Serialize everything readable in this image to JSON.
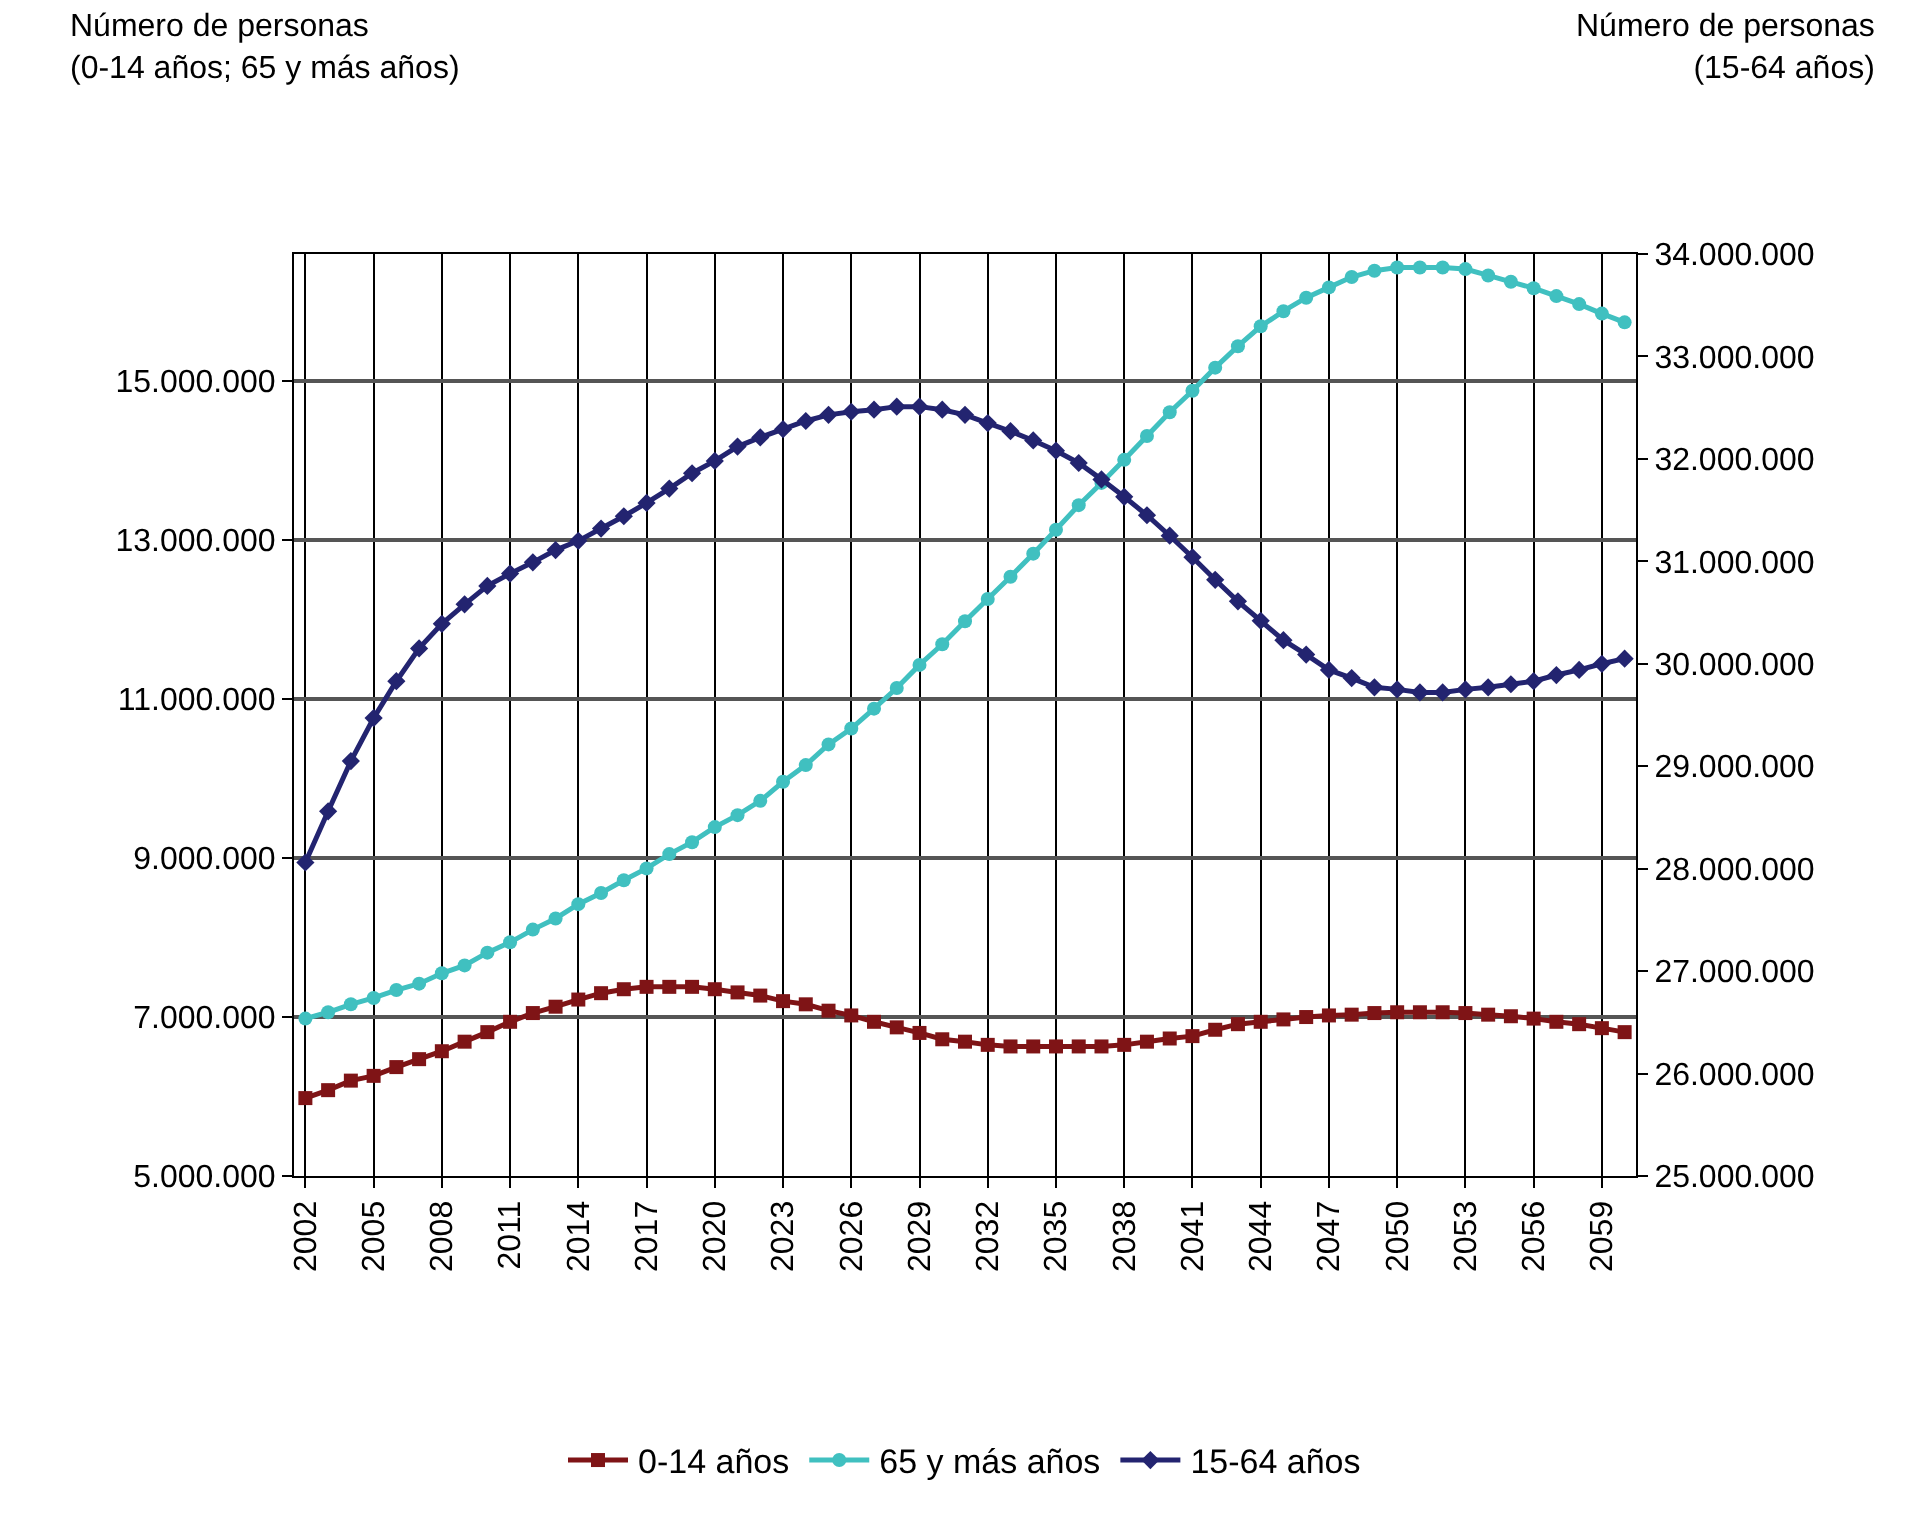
{
  "chart_data": {
    "type": "line",
    "ylabel": "Número de personas\n(0-14 años; 65 y más años)",
    "y2label": "Número de personas\n(15-64 años)",
    "x": [
      2002,
      2003,
      2004,
      2005,
      2006,
      2007,
      2008,
      2009,
      2010,
      2011,
      2012,
      2013,
      2014,
      2015,
      2016,
      2017,
      2018,
      2019,
      2020,
      2021,
      2022,
      2023,
      2024,
      2025,
      2026,
      2027,
      2028,
      2029,
      2030,
      2031,
      2032,
      2033,
      2034,
      2035,
      2036,
      2037,
      2038,
      2039,
      2040,
      2041,
      2042,
      2043,
      2044,
      2045,
      2046,
      2047,
      2048,
      2049,
      2050,
      2051,
      2052,
      2053,
      2054,
      2055,
      2056,
      2057,
      2058,
      2059,
      2060
    ],
    "xlim": [
      2001.5,
      2060.5
    ],
    "xticks": [
      2002,
      2005,
      2008,
      2011,
      2014,
      2017,
      2020,
      2023,
      2026,
      2029,
      2032,
      2035,
      2038,
      2041,
      2044,
      2047,
      2050,
      2053,
      2056,
      2059
    ],
    "ylim": [
      5000000,
      16600000
    ],
    "yticks": [
      {
        "value": 5000000,
        "label": "5.000.000"
      },
      {
        "value": 7000000,
        "label": "7.000.000"
      },
      {
        "value": 9000000,
        "label": "9.000.000"
      },
      {
        "value": 11000000,
        "label": "11.000.000"
      },
      {
        "value": 13000000,
        "label": "13.000.000"
      },
      {
        "value": 15000000,
        "label": "15.000.000"
      }
    ],
    "y2lim": [
      25000000,
      34000000
    ],
    "y2ticks": [
      {
        "value": 25000000,
        "label": "25.000.000"
      },
      {
        "value": 26000000,
        "label": "26.000.000"
      },
      {
        "value": 27000000,
        "label": "27.000.000"
      },
      {
        "value": 28000000,
        "label": "28.000.000"
      },
      {
        "value": 29000000,
        "label": "29.000.000"
      },
      {
        "value": 30000000,
        "label": "30.000.000"
      },
      {
        "value": 31000000,
        "label": "31.000.000"
      },
      {
        "value": 32000000,
        "label": "32.000.000"
      },
      {
        "value": 33000000,
        "label": "33.000.000"
      },
      {
        "value": 34000000,
        "label": "34.000.000"
      }
    ],
    "grid": true,
    "legend": "bottom",
    "line_style": "solid",
    "series": [
      {
        "name": "0-14 años",
        "color": "#7f1416",
        "marker": "square",
        "values": [
          5980000,
          6080000,
          6200000,
          6260000,
          6370000,
          6470000,
          6570000,
          6690000,
          6810000,
          6940000,
          7050000,
          7130000,
          7220000,
          7300000,
          7350000,
          7380000,
          7380000,
          7380000,
          7350000,
          7310000,
          7270000,
          7200000,
          7160000,
          7080000,
          7020000,
          6940000,
          6870000,
          6800000,
          6720000,
          6690000,
          6650000,
          6630000,
          6630000,
          6630000,
          6630000,
          6630000,
          6650000,
          6690000,
          6730000,
          6760000,
          6840000,
          6910000,
          6940000,
          6970000,
          7000000,
          7020000,
          7030000,
          7050000,
          7060000,
          7060000,
          7060000,
          7050000,
          7030000,
          7010000,
          6980000,
          6940000,
          6910000,
          6860000,
          6810000
        ]
      },
      {
        "name": "65 y más años",
        "color": "#40c0c0",
        "marker": "circle",
        "values": [
          6980000,
          7060000,
          7160000,
          7240000,
          7340000,
          7420000,
          7550000,
          7650000,
          7810000,
          7940000,
          8100000,
          8240000,
          8420000,
          8560000,
          8720000,
          8870000,
          9050000,
          9200000,
          9390000,
          9540000,
          9720000,
          9960000,
          10170000,
          10430000,
          10630000,
          10880000,
          11140000,
          11430000,
          11690000,
          11980000,
          12260000,
          12540000,
          12830000,
          13130000,
          13440000,
          13720000,
          14010000,
          14310000,
          14610000,
          14880000,
          15170000,
          15440000,
          15690000,
          15880000,
          16050000,
          16180000,
          16310000,
          16390000,
          16430000,
          16430000,
          16430000,
          16410000,
          16330000,
          16250000,
          16170000,
          16070000,
          15970000,
          15850000,
          15740000
        ]
      },
      {
        "name": "15-64 años",
        "color": "#232470",
        "marker": "diamond",
        "axis": "y2",
        "values": [
          28060000,
          28560000,
          29050000,
          29470000,
          29830000,
          30150000,
          30390000,
          30580000,
          30760000,
          30880000,
          30990000,
          31110000,
          31200000,
          31320000,
          31440000,
          31570000,
          31710000,
          31860000,
          31980000,
          32120000,
          32210000,
          32290000,
          32370000,
          32430000,
          32460000,
          32480000,
          32510000,
          32510000,
          32480000,
          32430000,
          32350000,
          32270000,
          32180000,
          32080000,
          31960000,
          31800000,
          31630000,
          31450000,
          31250000,
          31040000,
          30820000,
          30610000,
          30420000,
          30230000,
          30090000,
          29940000,
          29860000,
          29770000,
          29750000,
          29720000,
          29720000,
          29750000,
          29770000,
          29800000,
          29830000,
          29890000,
          29940000,
          30000000,
          30050000
        ]
      }
    ]
  }
}
